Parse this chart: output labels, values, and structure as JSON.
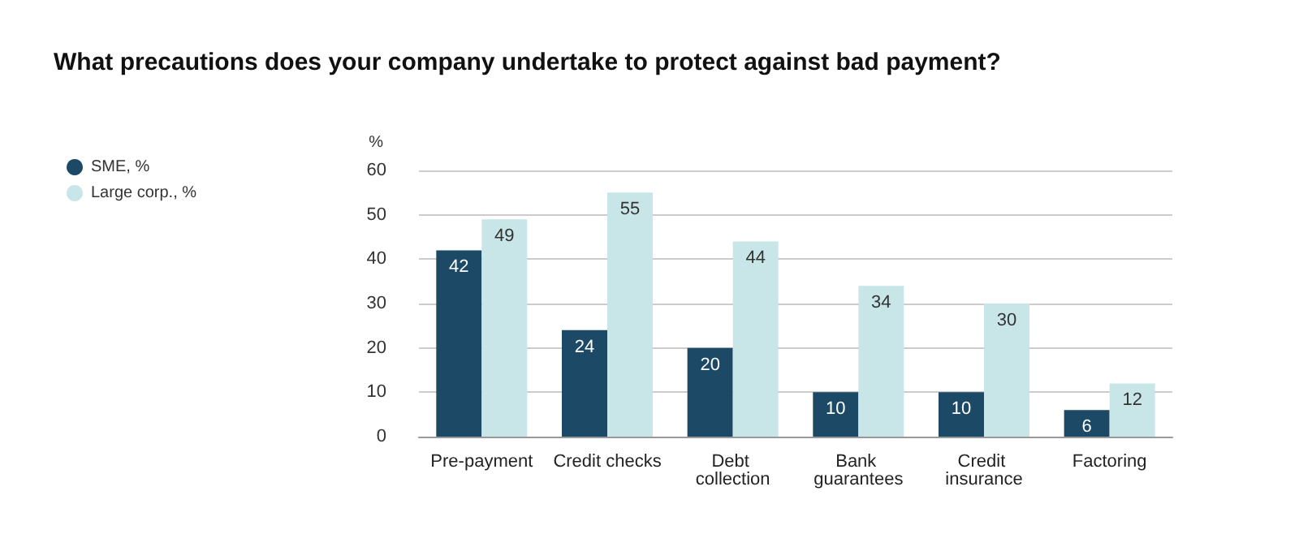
{
  "chart_data": {
    "type": "bar",
    "title": "What precautions does your company undertake to protect against bad payment?",
    "ylabel": "%",
    "categories": [
      "Pre-payment",
      "Credit checks",
      "Debt collection",
      "Bank guarantees",
      "Credit insurance",
      "Factoring"
    ],
    "series": [
      {
        "name": "SME, %",
        "color": "#1c4966",
        "values": [
          42,
          24,
          20,
          10,
          10,
          6
        ]
      },
      {
        "name": "Large corp., %",
        "color": "#c8e5e7",
        "values": [
          49,
          55,
          44,
          34,
          30,
          12
        ]
      }
    ],
    "ylim": [
      0,
      60
    ],
    "yticks": [
      0,
      10,
      20,
      30,
      40,
      50,
      60
    ],
    "grid": "y",
    "legend": "top left",
    "data_labels": true
  }
}
